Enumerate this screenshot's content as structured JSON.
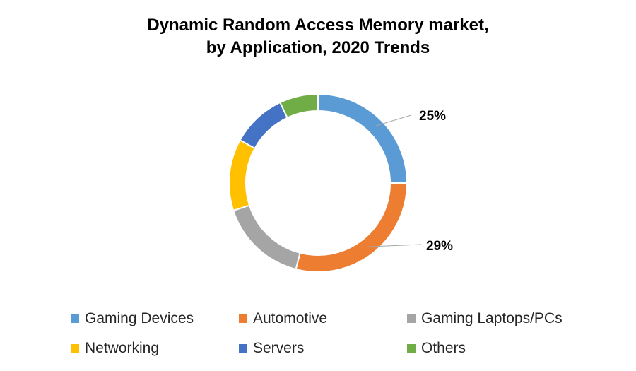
{
  "chart_data": {
    "type": "donut",
    "title": "Dynamic Random Access Memory market,",
    "subtitle": "by Application, 2020 Trends",
    "categories": [
      "Gaming Devices",
      "Automotive",
      "Gaming Laptops/PCs",
      "Networking",
      "Servers",
      "Others"
    ],
    "values": [
      25,
      29,
      16,
      13,
      10,
      7
    ],
    "colors": [
      "#5B9BD5",
      "#ED7D31",
      "#A5A5A5",
      "#FFC000",
      "#4472C4",
      "#70AD47"
    ],
    "data_labels": [
      {
        "category": "Gaming Devices",
        "text": "25%"
      },
      {
        "category": "Automotive",
        "text": "29%"
      }
    ],
    "legend_position": "bottom"
  }
}
